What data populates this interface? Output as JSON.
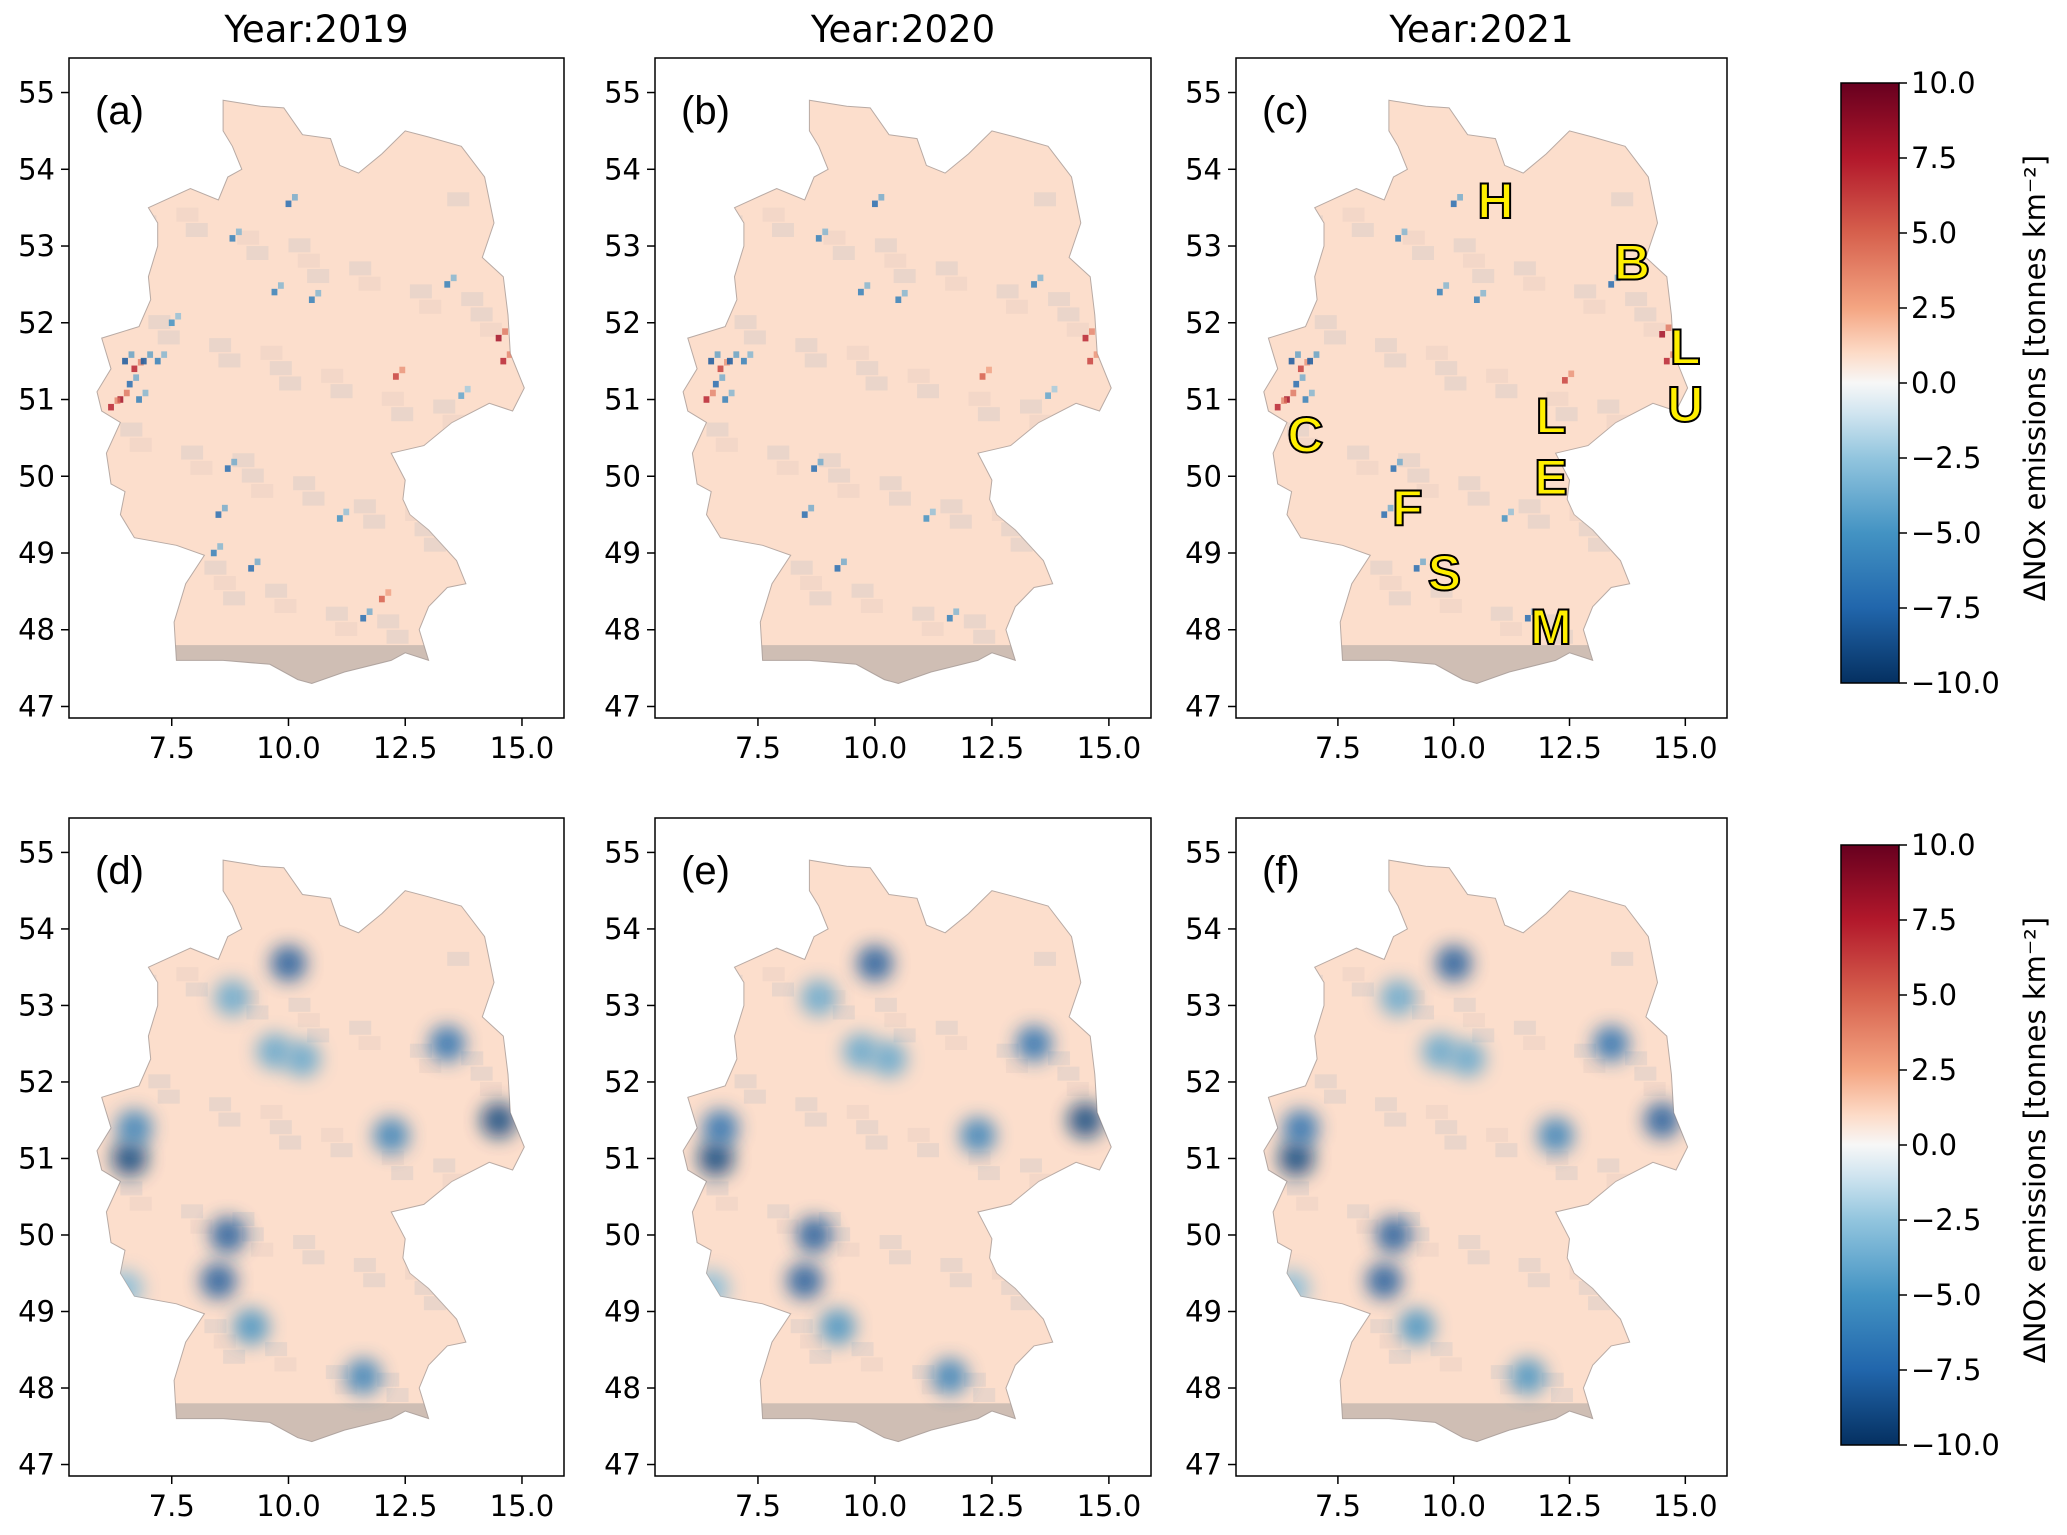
{
  "chart_data": {
    "type": "heatmap",
    "colormap": "RdBu_r",
    "colors": {
      "min": "#053061",
      "mid": "#f7f7f7",
      "max": "#67001f",
      "land_base": "#d9c5bd"
    },
    "xlim": [
      5.3,
      15.9
    ],
    "ylim": [
      46.85,
      55.45
    ],
    "xticks": [
      "7.5",
      "10.0",
      "12.5",
      "15.0"
    ],
    "yticks": [
      "47",
      "48",
      "49",
      "50",
      "51",
      "52",
      "53",
      "54",
      "55"
    ],
    "colorbar": {
      "label": "ΔNOx emissions [tonnes km⁻²]",
      "range": [
        -10,
        10
      ],
      "ticks": [
        "10.0",
        "7.5",
        "5.0",
        "2.5",
        "0.0",
        "−2.5",
        "−5.0",
        "−7.5",
        "−10.0"
      ]
    },
    "column_titles": [
      "Year:2019",
      "Year:2020",
      "Year:2021"
    ],
    "panels": [
      {
        "label": "(a)",
        "style": "gridded",
        "background_value": 1.0,
        "cells": [
          [
            6.5,
            51.5,
            -8
          ],
          [
            6.7,
            51.4,
            7
          ],
          [
            6.9,
            51.5,
            -8
          ],
          [
            6.6,
            51.2,
            -7
          ],
          [
            6.4,
            51.0,
            8
          ],
          [
            6.2,
            50.9,
            7
          ],
          [
            6.8,
            51.0,
            -6
          ],
          [
            7.2,
            51.5,
            -6
          ],
          [
            13.4,
            52.5,
            -6
          ],
          [
            10.0,
            53.55,
            -7
          ],
          [
            8.8,
            53.1,
            -6
          ],
          [
            9.7,
            52.4,
            -6
          ],
          [
            8.7,
            50.1,
            -7
          ],
          [
            8.5,
            49.5,
            -7
          ],
          [
            8.4,
            49.0,
            -6
          ],
          [
            9.2,
            48.8,
            -7
          ],
          [
            11.6,
            48.15,
            -7
          ],
          [
            12.3,
            51.3,
            6
          ],
          [
            14.5,
            51.8,
            8
          ],
          [
            14.6,
            51.5,
            7
          ],
          [
            13.7,
            51.05,
            -4
          ],
          [
            11.1,
            49.45,
            -5
          ],
          [
            12.0,
            48.4,
            5
          ],
          [
            7.5,
            52.0,
            -5
          ],
          [
            10.5,
            52.3,
            -6
          ]
        ]
      },
      {
        "label": "(b)",
        "style": "gridded",
        "background_value": 1.0,
        "cells": [
          [
            6.5,
            51.5,
            -8
          ],
          [
            6.7,
            51.4,
            6
          ],
          [
            6.9,
            51.5,
            -8
          ],
          [
            6.6,
            51.2,
            -7
          ],
          [
            6.4,
            51.0,
            7
          ],
          [
            6.8,
            51.0,
            -6
          ],
          [
            7.2,
            51.5,
            -6
          ],
          [
            13.4,
            52.5,
            -6
          ],
          [
            10.0,
            53.55,
            -7
          ],
          [
            8.8,
            53.1,
            -6
          ],
          [
            9.7,
            52.4,
            -6
          ],
          [
            8.7,
            50.1,
            -7
          ],
          [
            8.5,
            49.5,
            -7
          ],
          [
            9.2,
            48.8,
            -7
          ],
          [
            11.6,
            48.15,
            -6
          ],
          [
            12.3,
            51.3,
            5
          ],
          [
            14.5,
            51.8,
            7
          ],
          [
            14.6,
            51.5,
            6
          ],
          [
            13.7,
            51.05,
            -4
          ],
          [
            11.1,
            49.45,
            -5
          ],
          [
            10.5,
            52.3,
            -6
          ]
        ]
      },
      {
        "label": "(c)",
        "style": "gridded",
        "background_value": 1.0,
        "cells": [
          [
            6.5,
            51.5,
            -8
          ],
          [
            6.7,
            51.4,
            6
          ],
          [
            6.9,
            51.5,
            -8
          ],
          [
            6.6,
            51.2,
            -7
          ],
          [
            6.4,
            51.0,
            8
          ],
          [
            6.2,
            50.9,
            7
          ],
          [
            6.8,
            51.0,
            -6
          ],
          [
            13.4,
            52.5,
            -7
          ],
          [
            10.0,
            53.55,
            -7
          ],
          [
            8.8,
            53.1,
            -6
          ],
          [
            9.7,
            52.4,
            -6
          ],
          [
            8.7,
            50.1,
            -7
          ],
          [
            8.5,
            49.5,
            -7
          ],
          [
            9.2,
            48.8,
            -7
          ],
          [
            11.6,
            48.15,
            -7
          ],
          [
            12.4,
            51.25,
            6
          ],
          [
            14.5,
            51.85,
            8
          ],
          [
            14.6,
            51.5,
            7
          ],
          [
            11.1,
            49.45,
            -5
          ],
          [
            10.5,
            52.3,
            -6
          ]
        ],
        "annotations": [
          {
            "text": "H",
            "lon": 10.9,
            "lat": 53.6
          },
          {
            "text": "B",
            "lon": 13.85,
            "lat": 52.8
          },
          {
            "text": "L",
            "lon": 15.0,
            "lat": 51.7
          },
          {
            "text": "U",
            "lon": 15.0,
            "lat": 50.95
          },
          {
            "text": "L",
            "lon": 12.1,
            "lat": 50.8
          },
          {
            "text": "E",
            "lon": 12.1,
            "lat": 50.0
          },
          {
            "text": "C",
            "lon": 6.8,
            "lat": 50.55
          },
          {
            "text": "F",
            "lon": 9.0,
            "lat": 49.6
          },
          {
            "text": "S",
            "lon": 9.8,
            "lat": 48.75
          },
          {
            "text": "M",
            "lon": 12.1,
            "lat": 48.05
          }
        ]
      },
      {
        "label": "(d)",
        "style": "smoothed",
        "background_value": 1.0,
        "cells": [
          [
            6.6,
            51.0,
            -9
          ],
          [
            6.7,
            51.4,
            -6
          ],
          [
            14.5,
            51.5,
            -9
          ],
          [
            13.4,
            52.5,
            -7
          ],
          [
            10.0,
            53.55,
            -8
          ],
          [
            8.8,
            53.1,
            -4
          ],
          [
            9.7,
            52.4,
            -4
          ],
          [
            8.7,
            50.0,
            -8
          ],
          [
            8.5,
            49.4,
            -8
          ],
          [
            9.2,
            48.8,
            -5
          ],
          [
            11.6,
            48.15,
            -6
          ],
          [
            12.2,
            51.3,
            -6
          ],
          [
            10.3,
            52.3,
            -4
          ],
          [
            6.5,
            49.3,
            -3
          ]
        ]
      },
      {
        "label": "(e)",
        "style": "smoothed",
        "background_value": 1.0,
        "cells": [
          [
            6.6,
            51.0,
            -9
          ],
          [
            6.7,
            51.4,
            -7
          ],
          [
            14.5,
            51.5,
            -9
          ],
          [
            13.4,
            52.5,
            -7
          ],
          [
            10.0,
            53.55,
            -8
          ],
          [
            8.8,
            53.1,
            -4
          ],
          [
            9.7,
            52.4,
            -4
          ],
          [
            8.7,
            50.0,
            -8
          ],
          [
            8.5,
            49.4,
            -8
          ],
          [
            9.2,
            48.8,
            -5
          ],
          [
            11.6,
            48.15,
            -6
          ],
          [
            12.2,
            51.3,
            -6
          ],
          [
            10.3,
            52.3,
            -4
          ],
          [
            6.5,
            49.3,
            -3
          ]
        ]
      },
      {
        "label": "(f)",
        "style": "smoothed",
        "background_value": 1.0,
        "cells": [
          [
            6.6,
            51.0,
            -9
          ],
          [
            6.7,
            51.4,
            -7
          ],
          [
            14.5,
            51.5,
            -8
          ],
          [
            13.4,
            52.5,
            -7
          ],
          [
            10.0,
            53.55,
            -8
          ],
          [
            8.8,
            53.1,
            -4
          ],
          [
            9.7,
            52.4,
            -4
          ],
          [
            8.7,
            50.0,
            -8
          ],
          [
            8.5,
            49.4,
            -8
          ],
          [
            9.2,
            48.8,
            -5
          ],
          [
            11.6,
            48.15,
            -5
          ],
          [
            12.2,
            51.3,
            -6
          ],
          [
            10.3,
            52.3,
            -4
          ],
          [
            6.5,
            49.3,
            -3
          ]
        ]
      }
    ]
  }
}
